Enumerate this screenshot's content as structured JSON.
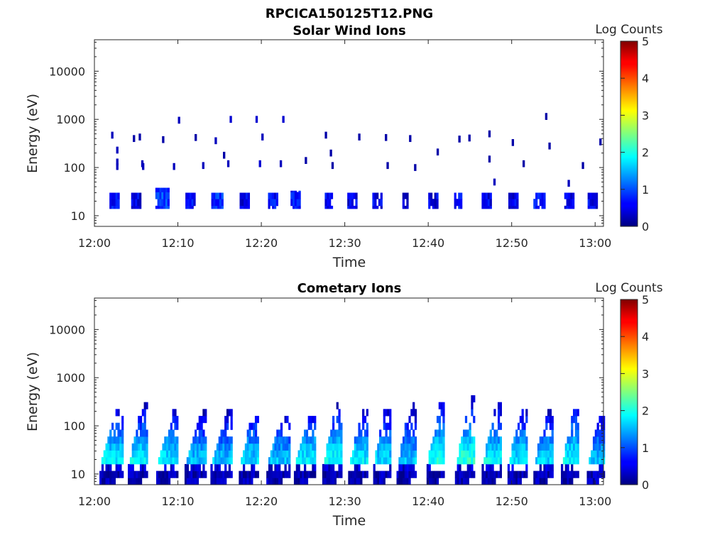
{
  "figure": {
    "title": "RPCICA150125T12.PNG"
  },
  "colorbar": {
    "title": "Log Counts",
    "range": [
      0,
      5
    ],
    "ticks": [
      "0",
      "1",
      "2",
      "3",
      "4",
      "5"
    ],
    "colormap": "jet"
  },
  "chart_data": [
    {
      "type": "heatmap",
      "title": "Solar Wind Ions",
      "xlabel": "Time",
      "ylabel": "Energy (eV)",
      "x_ticks": [
        "12:00",
        "12:10",
        "12:20",
        "12:30",
        "12:40",
        "12:50",
        "13:00"
      ],
      "x_range_minutes": [
        0,
        61
      ],
      "y_ticks": [
        10,
        100,
        1000,
        10000
      ],
      "y_range": [
        6,
        45000
      ],
      "y_scale": "log",
      "colorbar_label": "Log Counts",
      "colorbar_range": [
        0,
        5
      ],
      "blocks": [
        {
          "t": [
            1.8,
            2.9
          ],
          "e": [
            14,
            30
          ],
          "v": 0.5
        },
        {
          "t": [
            4.4,
            5.6
          ],
          "e": [
            14,
            30
          ],
          "v": 0.4
        },
        {
          "t": [
            7.3,
            8.8
          ],
          "e": [
            14,
            38
          ],
          "v": 0.8
        },
        {
          "t": [
            10.9,
            12.1
          ],
          "e": [
            14,
            30
          ],
          "v": 0.5
        },
        {
          "t": [
            14.0,
            15.3
          ],
          "e": [
            14,
            30
          ],
          "v": 0.7
        },
        {
          "t": [
            17.4,
            18.6
          ],
          "e": [
            14,
            30
          ],
          "v": 0.4
        },
        {
          "t": [
            20.8,
            21.9
          ],
          "e": [
            14,
            30
          ],
          "v": 0.5
        },
        {
          "t": [
            23.5,
            24.7
          ],
          "e": [
            14,
            33
          ],
          "v": 0.6
        },
        {
          "t": [
            27.6,
            28.5
          ],
          "e": [
            14,
            30
          ],
          "v": 0.5
        },
        {
          "t": [
            30.3,
            31.4
          ],
          "e": [
            14,
            30
          ],
          "v": 0.4
        },
        {
          "t": [
            33.3,
            34.4
          ],
          "e": [
            14,
            30
          ],
          "v": 0.4
        },
        {
          "t": [
            36.9,
            37.6
          ],
          "e": [
            14,
            30
          ],
          "v": 0.3
        },
        {
          "t": [
            40.0,
            41.0
          ],
          "e": [
            14,
            30
          ],
          "v": 0.4
        },
        {
          "t": [
            43.1,
            44.0
          ],
          "e": [
            14,
            30
          ],
          "v": 0.5
        },
        {
          "t": [
            46.4,
            47.5
          ],
          "e": [
            14,
            30
          ],
          "v": 0.4
        },
        {
          "t": [
            49.6,
            50.6
          ],
          "e": [
            14,
            30
          ],
          "v": 0.4
        },
        {
          "t": [
            52.6,
            54.0
          ],
          "e": [
            14,
            30
          ],
          "v": 0.7
        },
        {
          "t": [
            56.3,
            57.4
          ],
          "e": [
            14,
            30
          ],
          "v": 0.4
        },
        {
          "t": [
            59.1,
            60.3
          ],
          "e": [
            14,
            30
          ],
          "v": 0.4
        }
      ],
      "points": [
        {
          "t": 2.0,
          "e": 470,
          "v": 0.3
        },
        {
          "t": 2.6,
          "e": 230,
          "v": 0.3
        },
        {
          "t": 2.6,
          "e": 130,
          "v": 0.3
        },
        {
          "t": 2.6,
          "e": 105,
          "v": 0.3
        },
        {
          "t": 4.6,
          "e": 400,
          "v": 0.2
        },
        {
          "t": 5.3,
          "e": 430,
          "v": 0.2
        },
        {
          "t": 5.6,
          "e": 120,
          "v": 0.3
        },
        {
          "t": 5.7,
          "e": 105,
          "v": 0.3
        },
        {
          "t": 8.1,
          "e": 380,
          "v": 0.2
        },
        {
          "t": 9.4,
          "e": 105,
          "v": 0.3
        },
        {
          "t": 10.0,
          "e": 960,
          "v": 0.3
        },
        {
          "t": 12.0,
          "e": 420,
          "v": 0.2
        },
        {
          "t": 12.9,
          "e": 110,
          "v": 0.3
        },
        {
          "t": 14.4,
          "e": 360,
          "v": 0.3
        },
        {
          "t": 15.4,
          "e": 180,
          "v": 0.2
        },
        {
          "t": 15.9,
          "e": 120,
          "v": 0.3
        },
        {
          "t": 16.2,
          "e": 1000,
          "v": 0.4
        },
        {
          "t": 19.3,
          "e": 1000,
          "v": 0.4
        },
        {
          "t": 19.7,
          "e": 120,
          "v": 0.4
        },
        {
          "t": 20.0,
          "e": 430,
          "v": 0.3
        },
        {
          "t": 22.2,
          "e": 120,
          "v": 0.3
        },
        {
          "t": 22.5,
          "e": 1000,
          "v": 0.4
        },
        {
          "t": 25.2,
          "e": 140,
          "v": 0.2
        },
        {
          "t": 27.6,
          "e": 470,
          "v": 0.2
        },
        {
          "t": 28.2,
          "e": 200,
          "v": 0.2
        },
        {
          "t": 28.4,
          "e": 110,
          "v": 0.2
        },
        {
          "t": 31.6,
          "e": 430,
          "v": 0.2
        },
        {
          "t": 34.8,
          "e": 420,
          "v": 0.2
        },
        {
          "t": 35.0,
          "e": 110,
          "v": 0.2
        },
        {
          "t": 37.7,
          "e": 400,
          "v": 0.2
        },
        {
          "t": 38.3,
          "e": 100,
          "v": 0.2
        },
        {
          "t": 41.0,
          "e": 210,
          "v": 0.2
        },
        {
          "t": 43.6,
          "e": 390,
          "v": 0.2
        },
        {
          "t": 44.8,
          "e": 410,
          "v": 0.2
        },
        {
          "t": 47.2,
          "e": 500,
          "v": 0.2
        },
        {
          "t": 47.2,
          "e": 150,
          "v": 0.2
        },
        {
          "t": 47.8,
          "e": 50,
          "v": 0.3
        },
        {
          "t": 50.0,
          "e": 330,
          "v": 0.2
        },
        {
          "t": 51.3,
          "e": 120,
          "v": 0.2
        },
        {
          "t": 54.0,
          "e": 1150,
          "v": 0.2
        },
        {
          "t": 54.4,
          "e": 280,
          "v": 0.2
        },
        {
          "t": 56.7,
          "e": 47,
          "v": 0.3
        },
        {
          "t": 58.4,
          "e": 110,
          "v": 0.2
        },
        {
          "t": 60.5,
          "e": 340,
          "v": 0.2
        }
      ]
    },
    {
      "type": "heatmap",
      "title": "Cometary Ions",
      "xlabel": "Time",
      "ylabel": "Energy (eV)",
      "x_ticks": [
        "12:00",
        "12:10",
        "12:20",
        "12:30",
        "12:40",
        "12:50",
        "13:00"
      ],
      "x_range_minutes": [
        0,
        61
      ],
      "y_ticks": [
        10,
        100,
        1000,
        10000
      ],
      "y_range": [
        6,
        45000
      ],
      "y_scale": "log",
      "colorbar_label": "Log Counts",
      "colorbar_range": [
        0,
        5
      ],
      "columns": [
        {
          "t": [
            0.6,
            3.4
          ],
          "e_top": 210,
          "peak": 1.8
        },
        {
          "t": [
            4.0,
            6.4
          ],
          "e_top": 290,
          "peak": 1.9
        },
        {
          "t": [
            7.4,
            9.9
          ],
          "e_top": 190,
          "peak": 1.8
        },
        {
          "t": [
            10.8,
            13.3
          ],
          "e_top": 170,
          "peak": 1.6
        },
        {
          "t": [
            13.9,
            16.5
          ],
          "e_top": 200,
          "peak": 1.6
        },
        {
          "t": [
            17.3,
            19.6
          ],
          "e_top": 170,
          "peak": 1.7
        },
        {
          "t": [
            20.6,
            23.3
          ],
          "e_top": 150,
          "peak": 1.6
        },
        {
          "t": [
            23.9,
            26.4
          ],
          "e_top": 160,
          "peak": 1.8
        },
        {
          "t": [
            27.3,
            29.5
          ],
          "e_top": 250,
          "peak": 1.9
        },
        {
          "t": [
            30.4,
            32.6
          ],
          "e_top": 190,
          "peak": 1.8
        },
        {
          "t": [
            33.4,
            35.5
          ],
          "e_top": 350,
          "peak": 1.7
        },
        {
          "t": [
            36.2,
            38.4
          ],
          "e_top": 280,
          "peak": 1.6
        },
        {
          "t": [
            39.8,
            41.9
          ],
          "e_top": 280,
          "peak": 2.0
        },
        {
          "t": [
            43.2,
            45.6
          ],
          "e_top": 330,
          "peak": 2.1
        },
        {
          "t": [
            46.4,
            48.8
          ],
          "e_top": 260,
          "peak": 1.9
        },
        {
          "t": [
            49.5,
            51.8
          ],
          "e_top": 220,
          "peak": 1.8
        },
        {
          "t": [
            52.6,
            54.8
          ],
          "e_top": 210,
          "peak": 1.7
        },
        {
          "t": [
            55.9,
            58.0
          ],
          "e_top": 200,
          "peak": 1.9
        },
        {
          "t": [
            59.0,
            61.0
          ],
          "e_top": 140,
          "peak": 1.6
        }
      ]
    }
  ]
}
